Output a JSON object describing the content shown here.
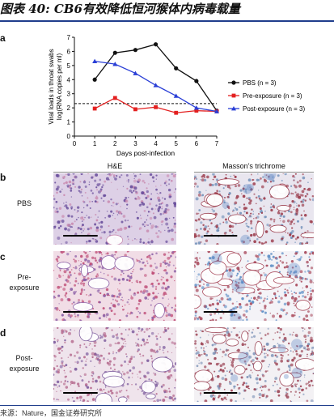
{
  "figure": {
    "title": "图表 40: CB6有效降低恒河猴体内病毒载量",
    "panel_a_letter": "a",
    "panel_b_letter": "b",
    "panel_c_letter": "c",
    "panel_d_letter": "d",
    "source": "来源：Nature，国金证券研究所"
  },
  "histology": {
    "col1_header": "H&E",
    "col2_header": "Masson’s trichrome",
    "row_b_label": "PBS",
    "row_c_label": "Pre-\nexposure",
    "row_d_label": "Post-\nexposure"
  },
  "chart_data": {
    "type": "line",
    "x": [
      1,
      2,
      3,
      4,
      5,
      6,
      7
    ],
    "xlabel": "Days post-infection",
    "ylabel": "Viral loads in throat swabs\nlog(RNA copies per ml)",
    "xlim": [
      0,
      7
    ],
    "ylim": [
      0,
      7
    ],
    "x_ticks": [
      0,
      1,
      2,
      3,
      4,
      5,
      6,
      7
    ],
    "y_ticks": [
      0,
      1,
      2,
      3,
      4,
      5,
      6,
      7
    ],
    "threshold": 2.3,
    "legend_position": "right",
    "series": [
      {
        "name": "PBS (n = 3)",
        "color": "#111111",
        "marker": "circle",
        "values": [
          4.0,
          5.9,
          6.1,
          6.5,
          4.8,
          3.9,
          1.8
        ]
      },
      {
        "name": "Pre-exposure (n = 3)",
        "color": "#e32020",
        "marker": "square",
        "values": [
          1.95,
          2.7,
          1.9,
          2.05,
          1.65,
          1.8,
          1.75
        ]
      },
      {
        "name": "Post-exposure (n = 3)",
        "color": "#2a3fd6",
        "marker": "triangle",
        "values": [
          5.3,
          5.1,
          4.45,
          3.6,
          2.85,
          2.0,
          1.75
        ]
      }
    ]
  }
}
